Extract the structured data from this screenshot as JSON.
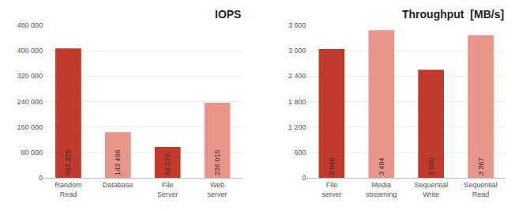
{
  "chart_data": [
    {
      "type": "bar",
      "title": "IOPS",
      "categories": [
        "Random\nRead",
        "Database",
        "File\nServer",
        "Web\nserver"
      ],
      "values": [
        407325,
        143496,
        97279,
        236015
      ],
      "colors": [
        "#c0392b",
        "#e8968a",
        "#c0392b",
        "#e8968a"
      ],
      "ylim": [
        0,
        480000
      ],
      "yticks": [
        0,
        {
          "value": 80000,
          "label": "80 000"
        },
        {
          "value": 160000,
          "label": "160 000"
        },
        {
          "value": 240000,
          "label": "240 000"
        },
        {
          "value": 320000,
          "label": "320 000"
        },
        {
          "value": 400000,
          "label": "400 000"
        },
        {
          "value": 480000,
          "label": "480 000"
        }
      ],
      "data_labels": true,
      "value_labels": [
        "407 325",
        "143 496",
        "97 279",
        "236 015"
      ],
      "grid": true
    },
    {
      "type": "bar",
      "title": "Throughput  [MB/s]",
      "categories": [
        "File\nserver",
        "Media\nstreaming",
        "Sequential\nWrite",
        "Sequential\nRead"
      ],
      "values": [
        3040,
        3484,
        2550,
        3367
      ],
      "colors": [
        "#c0392b",
        "#e8968a",
        "#c0392b",
        "#e8968a"
      ],
      "ylim": [
        0,
        3600
      ],
      "yticks": [
        0,
        600,
        {
          "value": 1200,
          "label": "1 200"
        },
        {
          "value": 1800,
          "label": "1 800"
        },
        {
          "value": 2400,
          "label": "2 400"
        },
        {
          "value": 3000,
          "label": "3 000"
        },
        {
          "value": 3600,
          "label": "3 600"
        }
      ],
      "data_labels": true,
      "value_labels": [
        "3 040",
        "3 484",
        "2 550",
        "3 367"
      ],
      "grid": true
    }
  ]
}
